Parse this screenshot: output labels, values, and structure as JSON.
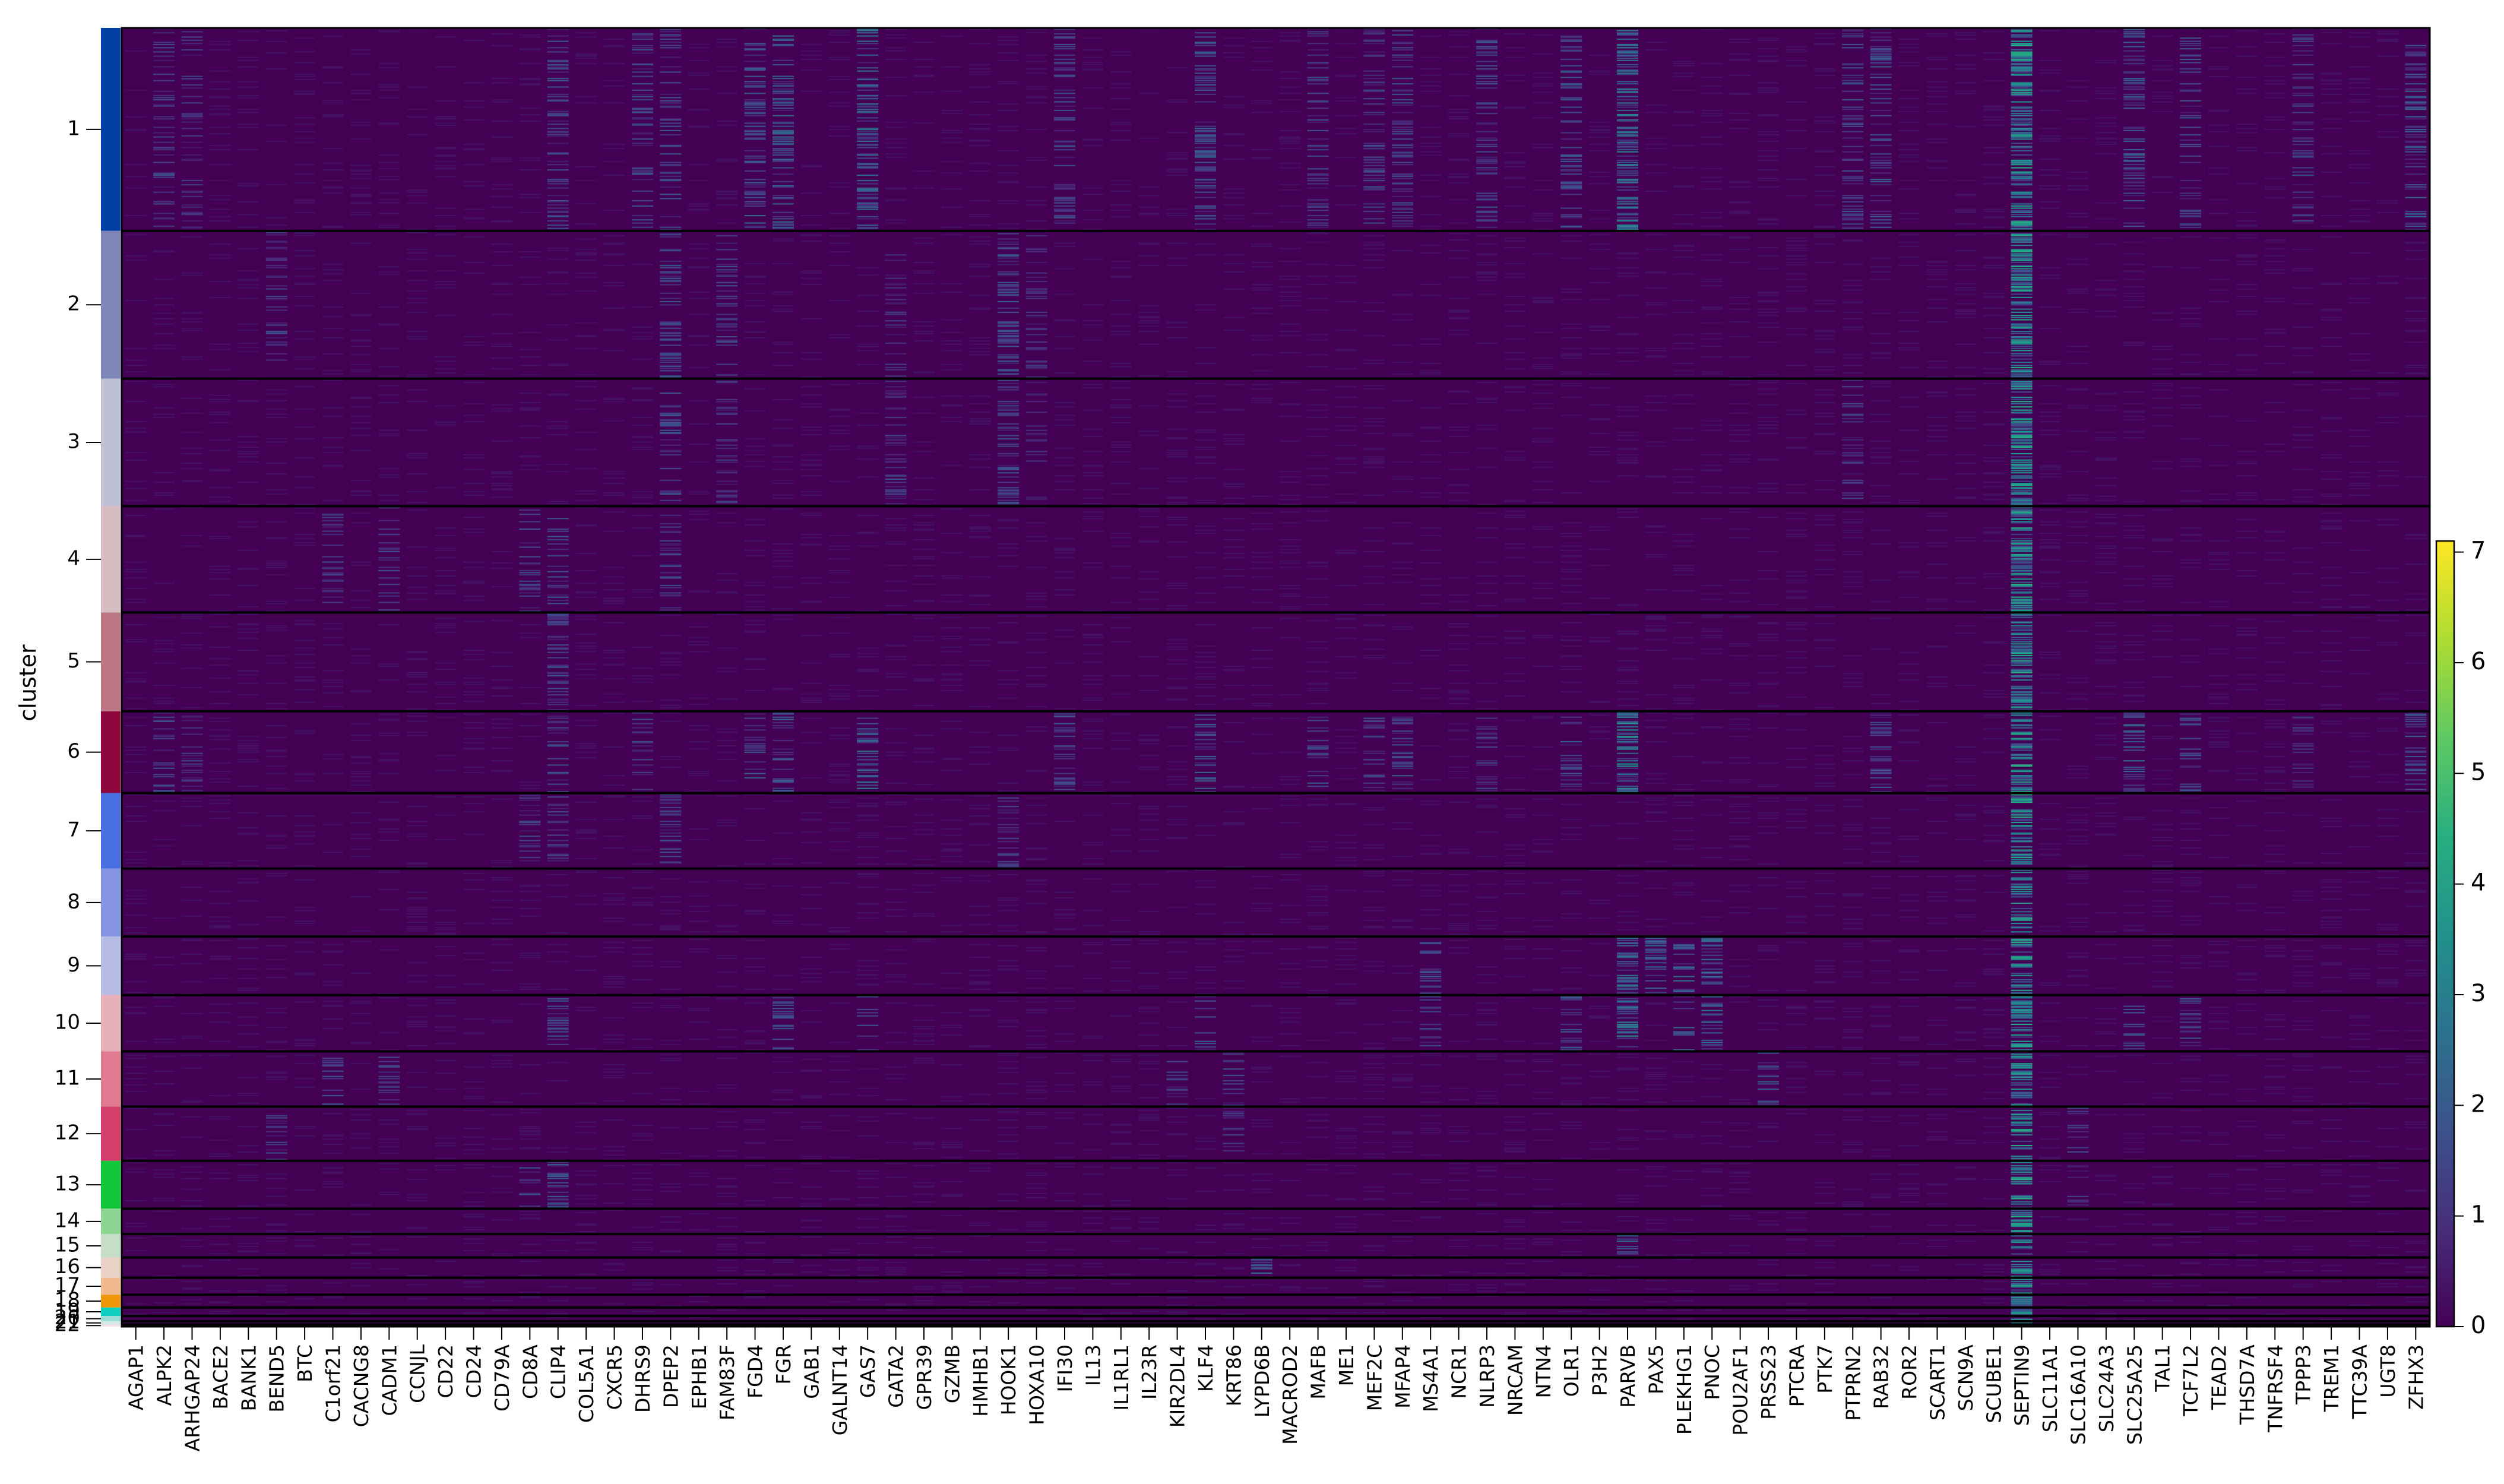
{
  "chart_data": {
    "type": "heatmap",
    "title": "",
    "ylabel": "cluster",
    "xlabel": "",
    "clusters": [
      {
        "label": "1",
        "rows": 191,
        "color": "#023fa5"
      },
      {
        "label": "2",
        "rows": 139,
        "color": "#7d87b9"
      },
      {
        "label": "3",
        "rows": 120,
        "color": "#bec1d4"
      },
      {
        "label": "4",
        "rows": 100,
        "color": "#d6bcc0"
      },
      {
        "label": "5",
        "rows": 93,
        "color": "#bb7784"
      },
      {
        "label": "6",
        "rows": 77,
        "color": "#8e063b"
      },
      {
        "label": "7",
        "rows": 71,
        "color": "#4a6fe3"
      },
      {
        "label": "8",
        "rows": 64,
        "color": "#8595e1"
      },
      {
        "label": "9",
        "rows": 55,
        "color": "#b5bbe3"
      },
      {
        "label": "10",
        "rows": 53,
        "color": "#e6afb9"
      },
      {
        "label": "11",
        "rows": 52,
        "color": "#e07b91"
      },
      {
        "label": "12",
        "rows": 51,
        "color": "#d33f6a"
      },
      {
        "label": "13",
        "rows": 45,
        "color": "#11c638"
      },
      {
        "label": "14",
        "rows": 24,
        "color": "#8dd593"
      },
      {
        "label": "15",
        "rows": 22,
        "color": "#c6dec7"
      },
      {
        "label": "16",
        "rows": 19,
        "color": "#ead3c6"
      },
      {
        "label": "17",
        "rows": 16,
        "color": "#f0b98d"
      },
      {
        "label": "18",
        "rows": 12,
        "color": "#ef9708"
      },
      {
        "label": "19",
        "rows": 8,
        "color": "#0fcfc0"
      },
      {
        "label": "20",
        "rows": 5,
        "color": "#9cded6"
      },
      {
        "label": "21",
        "rows": 3,
        "color": "#d5eae7"
      },
      {
        "label": "22",
        "rows": 2,
        "color": "#f3e1eb"
      }
    ],
    "genes": [
      "AGAP1",
      "ALPK2",
      "ARHGAP24",
      "BACE2",
      "BANK1",
      "BEND5",
      "BTC",
      "C1orf21",
      "CACNG8",
      "CADM1",
      "CCNJL",
      "CD22",
      "CD24",
      "CD79A",
      "CD8A",
      "CLIP4",
      "COL5A1",
      "CXCR5",
      "DHRS9",
      "DPEP2",
      "EPHB1",
      "FAM83F",
      "FGD4",
      "FGR",
      "GAB1",
      "GALNT14",
      "GAS7",
      "GATA2",
      "GPR39",
      "GZMB",
      "HMHB1",
      "HOOK1",
      "HOXA10",
      "IFI30",
      "IL13",
      "IL1RL1",
      "IL23R",
      "KIR2DL4",
      "KLF4",
      "KRT86",
      "LYPD6B",
      "MACROD2",
      "MAFB",
      "ME1",
      "MEF2C",
      "MFAP4",
      "MS4A1",
      "NCR1",
      "NLRP3",
      "NRCAM",
      "NTN4",
      "OLR1",
      "P3H2",
      "PARVB",
      "PAX5",
      "PLEKHG1",
      "PNOC",
      "POU2AF1",
      "PRSS23",
      "PTCRA",
      "PTK7",
      "PTPRN2",
      "RAB32",
      "ROR2",
      "SCART1",
      "SCN9A",
      "SCUBE1",
      "SEPTIN9",
      "SLC11A1",
      "SLC16A10",
      "SLC24A3",
      "SLC25A25",
      "TAL1",
      "TCF7L2",
      "TEAD2",
      "THSD7A",
      "TNFRSF4",
      "TPPP3",
      "TREM1",
      "TTC39A",
      "UGT8",
      "ZFHX3"
    ],
    "colormap": "viridis",
    "colorbar": {
      "min": 0,
      "max": 7.1,
      "ticks": [
        "0",
        "1",
        "2",
        "3",
        "4",
        "5",
        "6",
        "7"
      ]
    },
    "high_expression_genes": {
      "SEPTIN9": {
        "all": 2.2
      },
      "PARVB": {
        "1": 1.6,
        "6": 1.8,
        "9": 1.5,
        "10": 1.9,
        "15": 1.2
      },
      "GAS7": {
        "1": 1.3,
        "6": 1.4,
        "10": 0.9
      },
      "FGR": {
        "1": 1.2,
        "6": 1.2,
        "10": 1.0
      },
      "FGD4": {
        "1": 1.1,
        "6": 1.1
      },
      "KLF4": {
        "1": 1.1,
        "6": 1.2,
        "10": 1.0
      },
      "OLR1": {
        "1": 1.0,
        "6": 1.0,
        "10": 1.1
      },
      "SLC25A25": {
        "1": 1.1,
        "6": 1.2,
        "10": 1.0
      },
      "ZFHX3": {
        "1": 1.1,
        "6": 1.1
      },
      "CLIP4": {
        "1": 0.9,
        "4": 1.0,
        "5": 0.9,
        "6": 0.9,
        "7": 0.8,
        "10": 1.0,
        "13": 1.1
      },
      "CD8A": {
        "4": 0.9,
        "7": 0.8,
        "13": 1.0
      },
      "DPEP2": {
        "1": 0.9,
        "2": 1.0,
        "3": 1.0,
        "4": 0.8,
        "7": 0.9
      },
      "HOOK1": {
        "2": 1.0,
        "3": 0.9,
        "7": 0.8
      },
      "IFI30": {
        "1": 1.0,
        "6": 1.1
      },
      "PLEKHG1": {
        "9": 1.3,
        "10": 1.1
      },
      "PNOC": {
        "9": 1.4,
        "10": 1.3
      },
      "PAX5": {
        "9": 1.2
      },
      "MS4A1": {
        "9": 1.1,
        "10": 0.8
      },
      "TCF7L2": {
        "1": 0.9,
        "6": 1.0,
        "10": 0.9
      },
      "RAB32": {
        "1": 1.0,
        "6": 1.0
      },
      "PTPRN2": {
        "1": 0.9,
        "3": 0.7
      },
      "TPPP3": {
        "1": 0.8,
        "6": 0.8
      },
      "MEF2C": {
        "1": 0.9,
        "6": 0.9
      },
      "MFAP4": {
        "1": 0.9,
        "6": 1.0
      },
      "MAFB": {
        "1": 0.8,
        "6": 0.9
      },
      "NLRP3": {
        "1": 0.9,
        "6": 0.8
      },
      "DHRS9": {
        "1": 0.9,
        "6": 0.8
      },
      "ALPK2": {
        "1": 0.8,
        "6": 0.9
      },
      "ARHGAP24": {
        "1": 0.7,
        "6": 0.8
      },
      "C1orf21": {
        "4": 0.8,
        "11": 1.0
      },
      "CADM1": {
        "4": 0.8,
        "11": 0.8
      },
      "KRT86": {
        "11": 0.9,
        "12": 0.8
      },
      "PRSS23": {
        "11": 1.0
      },
      "SLC16A10": {
        "12": 0.9,
        "13": 0.7
      },
      "BEND5": {
        "2": 0.8,
        "12": 0.8
      },
      "FAM83F": {
        "2": 0.8,
        "3": 0.7
      },
      "LYPD6B": {
        "16": 1.4
      },
      "GATA2": {
        "2": 0.7,
        "3": 0.8
      },
      "KIR2DL4": {
        "11": 0.8
      },
      "HOXA10": {
        "2": 0.6,
        "3": 0.6
      }
    }
  }
}
